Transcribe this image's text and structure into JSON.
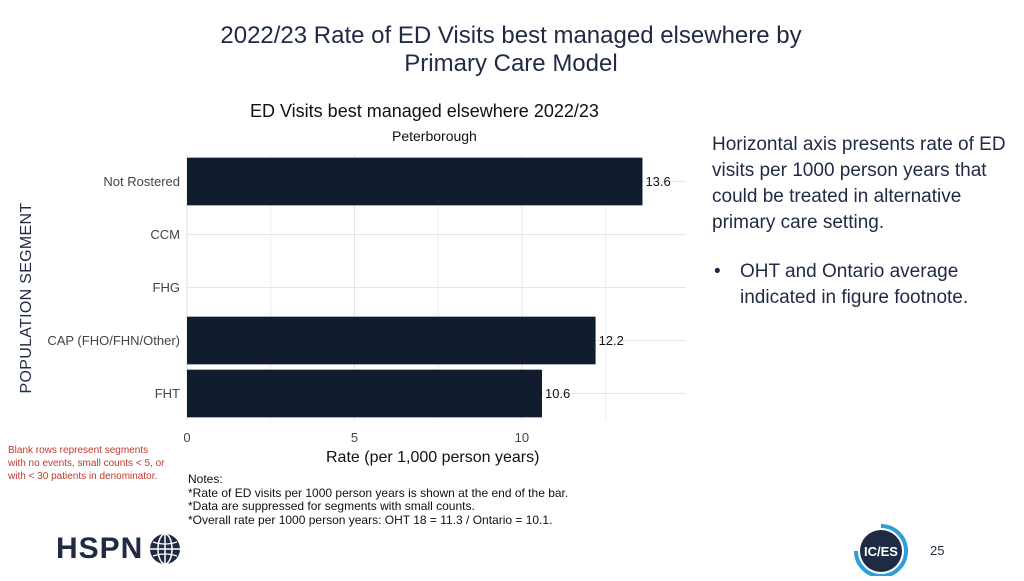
{
  "slide": {
    "title": "2022/23 Rate of ED Visits best managed elsewhere by Primary Care Model",
    "side_text": "Horizontal axis presents rate of ED visits per 1000 person years that could be treated in alternative primary care setting.",
    "bullet": "OHT and Ontario average indicated in figure footnote.",
    "bullet_mark": "•",
    "left_note": "Blank rows represent segments with no events, small counts < 5, or with < 30 patients in denominator.",
    "notes": [
      "Notes:",
      "*Rate of ED visits per 1000 person years is shown at the end of the bar.",
      "*Data are suppressed for segments with small counts.",
      "*Overall rate per 1000 person years: OHT 18 = 11.3 / Ontario = 10.1."
    ],
    "logo_text": "HSPN",
    "ices_logo_text": "IC/ES",
    "page_number": "25"
  },
  "chart_data": {
    "type": "bar",
    "orientation": "horizontal",
    "title": "ED Visits best managed elsewhere 2022/23",
    "subtitle": "Peterborough",
    "xlabel": "Rate (per 1,000 person years)",
    "ylabel": "POPULATION SEGMENT",
    "categories": [
      "Not Rostered",
      "CCM",
      "FHG",
      "CAP (FHO/FHN/Other)",
      "FHT"
    ],
    "values": [
      13.6,
      null,
      null,
      12.2,
      10.6
    ],
    "data_labels": [
      "13.6",
      "",
      "",
      "12.2",
      "10.6"
    ],
    "xticks": [
      0,
      5,
      10
    ],
    "xlim": [
      0,
      14.9
    ],
    "grid": true,
    "bar_color": "#111d2e"
  }
}
